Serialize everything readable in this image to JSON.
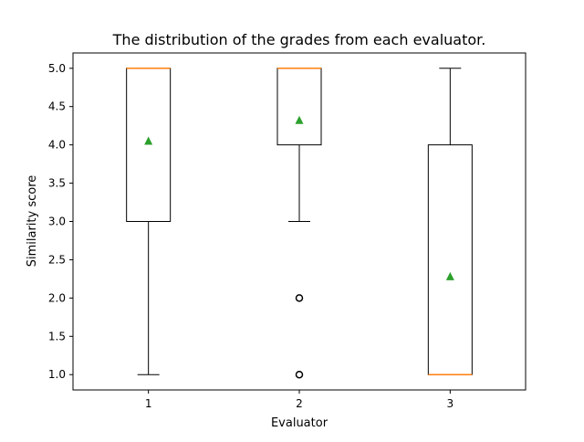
{
  "chart_data": {
    "type": "box",
    "title": "The distribution of the grades from each evaluator.",
    "xlabel": "Evaluator",
    "ylabel": "Similarity score",
    "ylim": [
      0.8,
      5.2
    ],
    "yticks": [
      "1.0",
      "1.5",
      "2.0",
      "2.5",
      "3.0",
      "3.5",
      "4.0",
      "4.5",
      "5.0"
    ],
    "categories": [
      "1",
      "2",
      "3"
    ],
    "boxes": [
      {
        "category": "1",
        "whisker_low": 1.0,
        "q1": 3.0,
        "median": 5.0,
        "q3": 5.0,
        "whisker_high": 5.0,
        "mean": 4.05,
        "outliers": []
      },
      {
        "category": "2",
        "whisker_low": 3.0,
        "q1": 4.0,
        "median": 5.0,
        "q3": 5.0,
        "whisker_high": 5.0,
        "mean": 4.32,
        "outliers": [
          2.0,
          1.0
        ]
      },
      {
        "category": "3",
        "whisker_low": 1.0,
        "q1": 1.0,
        "median": 1.0,
        "q3": 4.0,
        "whisker_high": 5.0,
        "mean": 2.28,
        "outliers": []
      }
    ],
    "grid": false,
    "colors": {
      "box": "#000000",
      "median": "#ff7f0e",
      "mean": "#2ca02c"
    }
  }
}
